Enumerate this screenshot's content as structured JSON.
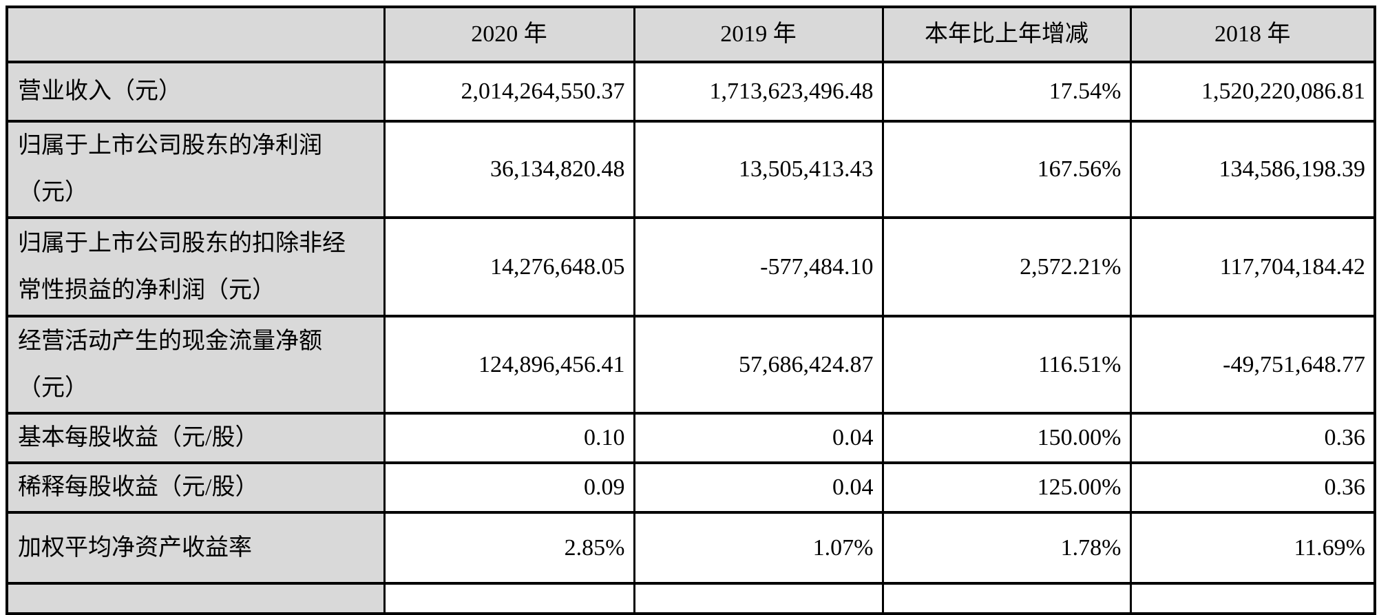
{
  "colors": {
    "border": "#000000",
    "header_background": "#d9d9d9",
    "label_column_background": "#d9d9d9",
    "value_cell_background": "#ffffff"
  },
  "table": {
    "columns": [
      "",
      "2020 年",
      "2019 年",
      "本年比上年增减",
      "2018 年"
    ],
    "rows": [
      {
        "label": "营业收入（元）",
        "values": [
          "2,014,264,550.37",
          "1,713,623,496.48",
          "17.54%",
          "1,520,220,086.81"
        ]
      },
      {
        "label": "归属于上市公司股东的净利润\n（元）",
        "values": [
          "36,134,820.48",
          "13,505,413.43",
          "167.56%",
          "134,586,198.39"
        ]
      },
      {
        "label": "归属于上市公司股东的扣除非经\n常性损益的净利润（元）",
        "values": [
          "14,276,648.05",
          "-577,484.10",
          "2,572.21%",
          "117,704,184.42"
        ]
      },
      {
        "label": "经营活动产生的现金流量净额\n（元）",
        "values": [
          "124,896,456.41",
          "57,686,424.87",
          "116.51%",
          "-49,751,648.77"
        ]
      },
      {
        "label": "基本每股收益（元/股）",
        "values": [
          "0.10",
          "0.04",
          "150.00%",
          "0.36"
        ]
      },
      {
        "label": "稀释每股收益（元/股）",
        "values": [
          "0.09",
          "0.04",
          "125.00%",
          "0.36"
        ]
      },
      {
        "label": "加权平均净资产收益率",
        "values": [
          "2.85%",
          "1.07%",
          "1.78%",
          "11.69%"
        ]
      }
    ],
    "partial_row": {
      "label": "",
      "values": [
        "",
        "",
        "",
        ""
      ]
    }
  }
}
